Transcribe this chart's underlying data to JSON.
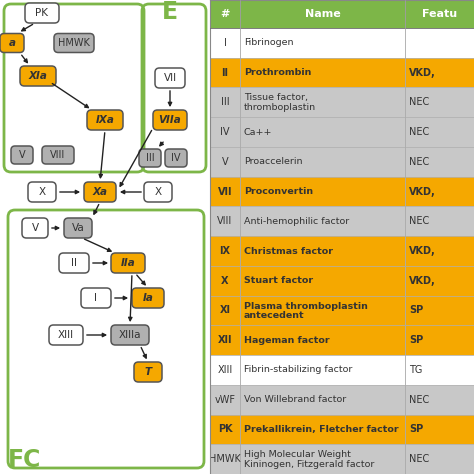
{
  "bg_color": "#ffffff",
  "green": "#7db648",
  "orange": "#f5a800",
  "gray_fill": "#b0b0b0",
  "white": "#ffffff",
  "table_rows": [
    {
      "num": "I",
      "name": "Fibrinogen",
      "name2": "",
      "feat": "",
      "color": "white"
    },
    {
      "num": "II",
      "name": "Prothrombin",
      "name2": "",
      "feat": "VKD,",
      "color": "orange"
    },
    {
      "num": "III",
      "name": "Tissue factor,",
      "name2": "thromboplastin",
      "feat": "NEC",
      "color": "gray"
    },
    {
      "num": "IV",
      "name": "Ca++",
      "name2": "",
      "feat": "NEC",
      "color": "gray"
    },
    {
      "num": "V",
      "name": "Proaccelerin",
      "name2": "",
      "feat": "NEC",
      "color": "gray"
    },
    {
      "num": "VII",
      "name": "Proconvertin",
      "name2": "",
      "feat": "VKD,",
      "color": "orange"
    },
    {
      "num": "VIII",
      "name": "Anti-hemophilic factor",
      "name2": "",
      "feat": "NEC",
      "color": "gray"
    },
    {
      "num": "IX",
      "name": "Christmas factor",
      "name2": "",
      "feat": "VKD,",
      "color": "orange"
    },
    {
      "num": "X",
      "name": "Stuart factor",
      "name2": "",
      "feat": "VKD,",
      "color": "orange"
    },
    {
      "num": "XI",
      "name": "Plasma thromboplastin",
      "name2": "antecedent",
      "feat": "SP",
      "color": "orange"
    },
    {
      "num": "XII",
      "name": "Hageman factor",
      "name2": "",
      "feat": "SP",
      "color": "orange"
    },
    {
      "num": "XIII",
      "name": "Fibrin-stabilizing factor",
      "name2": "",
      "feat": "TG",
      "color": "white"
    },
    {
      "num": "vWF",
      "name": "Von Willebrand factor",
      "name2": "",
      "feat": "NEC",
      "color": "gray"
    },
    {
      "num": "PK",
      "name": "Prekallikrein, Fletcher factor",
      "name2": "",
      "feat": "SP",
      "color": "orange"
    },
    {
      "num": "HMWK",
      "name": "High Molecular Weight",
      "name2": "Kininogen, Fitzgerald factor",
      "feat": "NEC",
      "color": "gray"
    }
  ]
}
